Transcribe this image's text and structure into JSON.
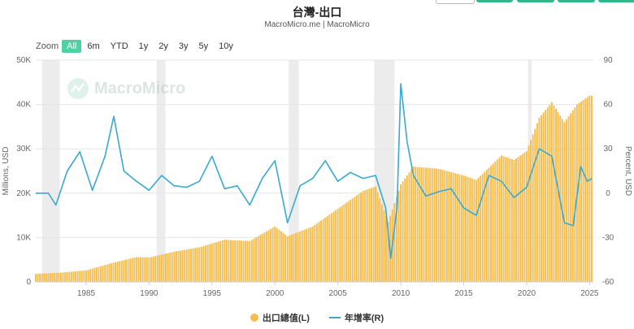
{
  "title": "台灣-出口",
  "subtitle": "MacroMicro.me | MacroMicro",
  "watermark": "MacroMicro",
  "zoom": {
    "label": "Zoom",
    "options": [
      "All",
      "6m",
      "YTD",
      "1y",
      "2y",
      "3y",
      "5y",
      "10y"
    ],
    "active": "All"
  },
  "colors": {
    "bars": "#f5be4f",
    "line": "#3aa9d0",
    "accent": "#4fd1a5",
    "recession": "#ececec"
  },
  "legend": {
    "bars": "出口總值(L)",
    "line": "年增率(R)"
  },
  "chart_data": {
    "type": "bar+line",
    "title": "台灣-出口",
    "subtitle": "MacroMicro.me | MacroMicro",
    "x_ticks": [
      "1985",
      "1990",
      "1995",
      "2000",
      "2005",
      "2010",
      "2015",
      "2020",
      "2025"
    ],
    "y_left": {
      "label": "Millions, USD",
      "ticks": [
        "0",
        "10K",
        "20K",
        "30K",
        "40K",
        "50K"
      ],
      "range": [
        0,
        50000
      ]
    },
    "y_right": {
      "label": "Percent, USD",
      "ticks": [
        "-60",
        "-30",
        "0",
        "30",
        "60",
        "90"
      ],
      "range": [
        -60,
        90
      ]
    },
    "x_range": [
      1981,
      2025.3
    ],
    "shaded_periods": [
      [
        1981.5,
        1982.9
      ],
      [
        1990.6,
        1991.3
      ],
      [
        2001.1,
        2001.9
      ],
      [
        2007.9,
        2009.5
      ],
      [
        2020.1,
        2020.4
      ]
    ],
    "series": [
      {
        "name": "出口總值(L)",
        "type": "bar",
        "axis": "left",
        "points": [
          [
            1981,
            1800
          ],
          [
            1983,
            2100
          ],
          [
            1985,
            2600
          ],
          [
            1987,
            4200
          ],
          [
            1989,
            5600
          ],
          [
            1990,
            5500
          ],
          [
            1992,
            6800
          ],
          [
            1994,
            7800
          ],
          [
            1996,
            9500
          ],
          [
            1998,
            9200
          ],
          [
            2000,
            12500
          ],
          [
            2001,
            10300
          ],
          [
            2003,
            12500
          ],
          [
            2005,
            16500
          ],
          [
            2007,
            20500
          ],
          [
            2008,
            21500
          ],
          [
            2009,
            13500
          ],
          [
            2010,
            22000
          ],
          [
            2011,
            26000
          ],
          [
            2013,
            25500
          ],
          [
            2015,
            24000
          ],
          [
            2016,
            23000
          ],
          [
            2018,
            28500
          ],
          [
            2019,
            27500
          ],
          [
            2020,
            29500
          ],
          [
            2021,
            37000
          ],
          [
            2022,
            40500
          ],
          [
            2023,
            36000
          ],
          [
            2024,
            40000
          ],
          [
            2025,
            42000
          ]
        ]
      },
      {
        "name": "年增率(R)",
        "type": "line",
        "axis": "right",
        "points": [
          [
            1981,
            0
          ],
          [
            1982,
            0
          ],
          [
            1982.6,
            -8
          ],
          [
            1983.5,
            15
          ],
          [
            1984.5,
            28
          ],
          [
            1985.5,
            2
          ],
          [
            1986.5,
            25
          ],
          [
            1987.2,
            52
          ],
          [
            1988,
            15
          ],
          [
            1989,
            8
          ],
          [
            1990,
            2
          ],
          [
            1991,
            12
          ],
          [
            1992,
            5
          ],
          [
            1993,
            4
          ],
          [
            1994,
            8
          ],
          [
            1995,
            25
          ],
          [
            1996,
            3
          ],
          [
            1997,
            5
          ],
          [
            1998,
            -8
          ],
          [
            1999,
            10
          ],
          [
            2000,
            22
          ],
          [
            2001,
            -20
          ],
          [
            2002,
            5
          ],
          [
            2003,
            10
          ],
          [
            2004,
            22
          ],
          [
            2005,
            8
          ],
          [
            2006,
            14
          ],
          [
            2007,
            10
          ],
          [
            2008,
            12
          ],
          [
            2008.8,
            -10
          ],
          [
            2009.2,
            -44
          ],
          [
            2009.7,
            -10
          ],
          [
            2010,
            74
          ],
          [
            2010.5,
            35
          ],
          [
            2011,
            12
          ],
          [
            2012,
            -2
          ],
          [
            2013,
            1
          ],
          [
            2014,
            3
          ],
          [
            2015,
            -10
          ],
          [
            2016,
            -15
          ],
          [
            2017,
            12
          ],
          [
            2018,
            8
          ],
          [
            2019,
            -3
          ],
          [
            2020,
            4
          ],
          [
            2021,
            30
          ],
          [
            2022,
            25
          ],
          [
            2023,
            -20
          ],
          [
            2023.7,
            -22
          ],
          [
            2024.3,
            18
          ],
          [
            2024.8,
            8
          ],
          [
            2025.2,
            10
          ]
        ]
      }
    ]
  }
}
